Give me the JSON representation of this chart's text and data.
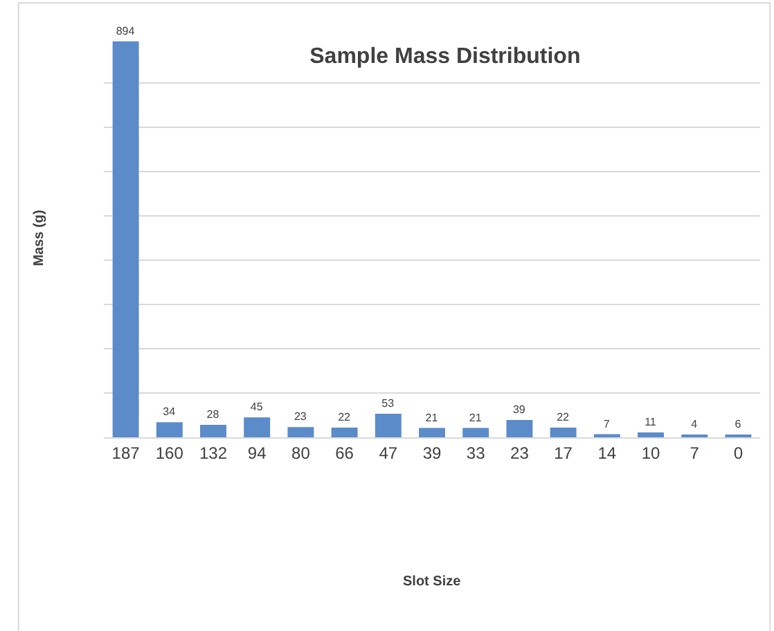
{
  "chart_data": {
    "type": "bar",
    "title": "Sample Mass Distribution",
    "annotations": [
      "Slot Size"
    ],
    "ylabel": "Mass (g)",
    "categories": [
      "187",
      "160",
      "132",
      "94",
      "80",
      "66",
      "47",
      "39",
      "33",
      "23",
      "17",
      "14",
      "10",
      "7",
      "0"
    ],
    "values": [
      894,
      34,
      28,
      45,
      23,
      22,
      53,
      21,
      21,
      39,
      22,
      7,
      11,
      4,
      6
    ],
    "color": "#5b8bc9",
    "data_labels": true,
    "grid": "y",
    "tick_labels": "x",
    "ylim": [
      0,
      900
    ],
    "yticks": [
      {
        "value": 0,
        "label": null
      },
      {
        "value": 100,
        "label": null
      },
      {
        "value": 200,
        "label": null
      },
      {
        "value": 300,
        "label": null
      },
      {
        "value": 400,
        "label": null
      },
      {
        "value": 500,
        "label": null
      },
      {
        "value": 600,
        "label": null
      },
      {
        "value": 700,
        "label": null
      },
      {
        "value": 800,
        "label": null
      }
    ]
  }
}
